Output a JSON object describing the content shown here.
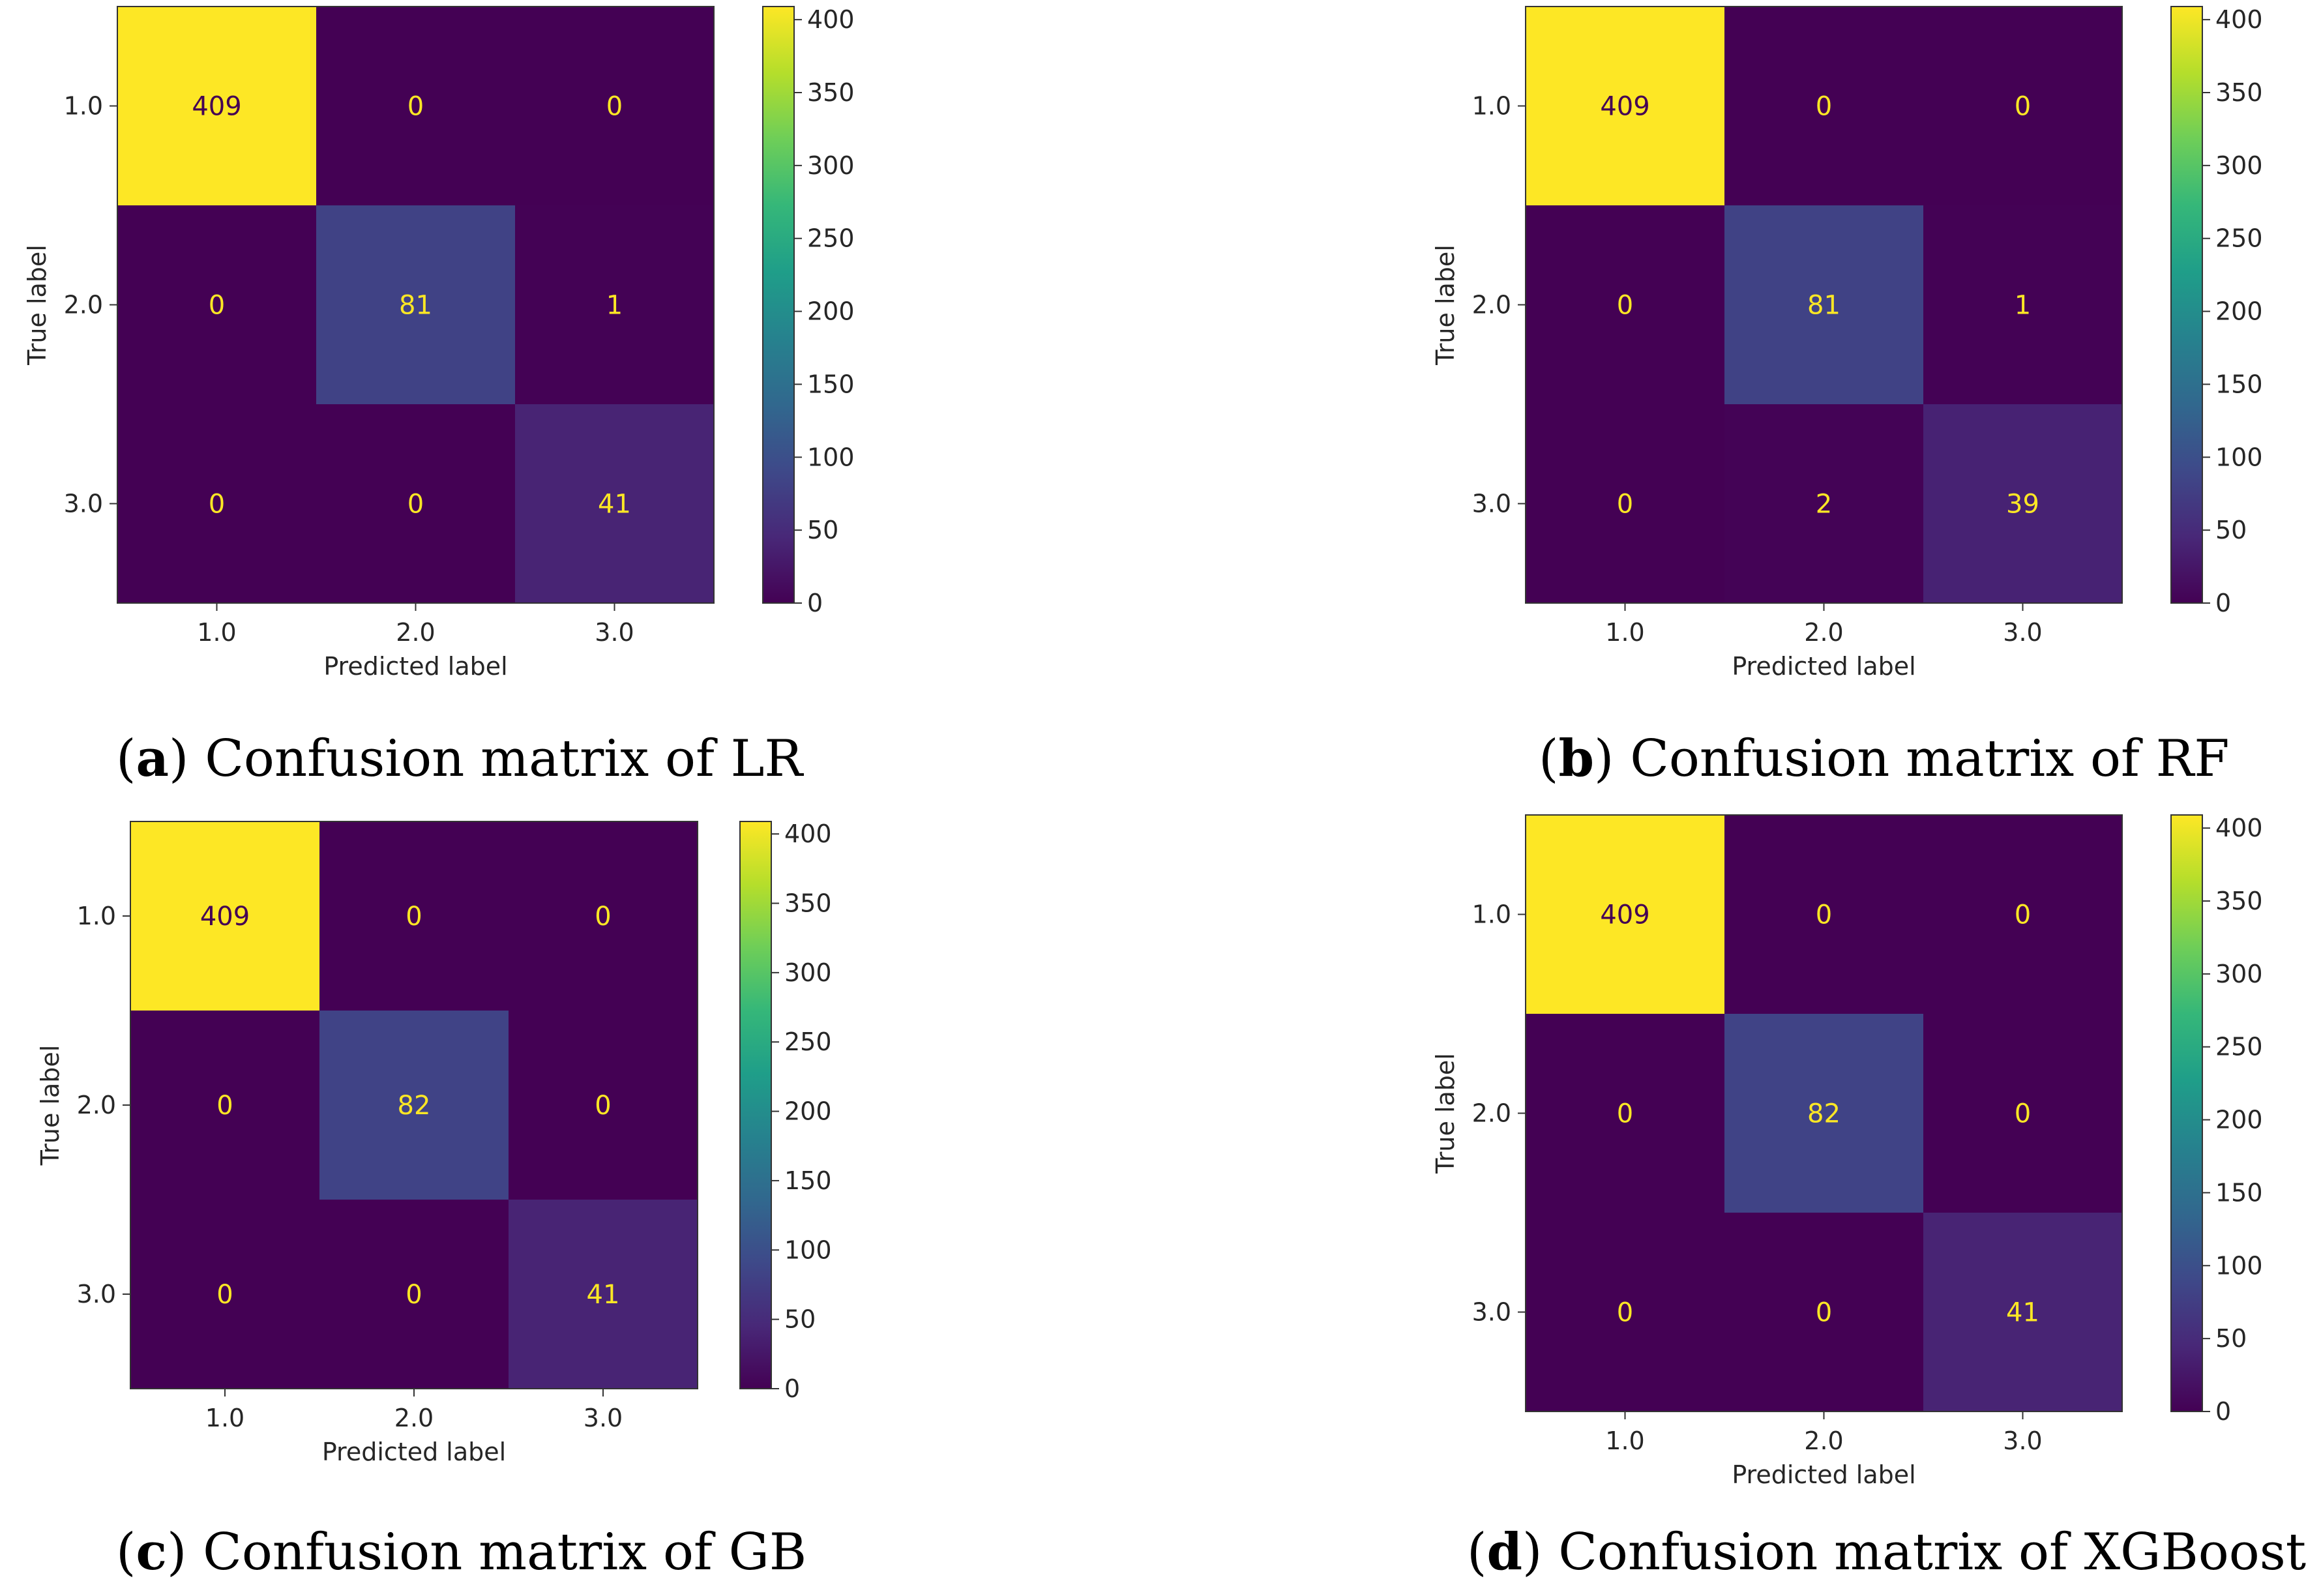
{
  "colormap": {
    "name": "viridis",
    "stops": [
      "#440154",
      "#482878",
      "#3e4989",
      "#31688e",
      "#26828e",
      "#1f9e89",
      "#35b779",
      "#6ece58",
      "#b5de2b",
      "#fde725"
    ]
  },
  "chart_data": [
    {
      "type": "heatmap",
      "title": "",
      "caption_letter": "a",
      "caption_text": "Confusion matrix of LR",
      "xlabel": "Predicted label",
      "ylabel": "True label",
      "x_categories": [
        "1.0",
        "2.0",
        "3.0"
      ],
      "y_categories": [
        "1.0",
        "2.0",
        "3.0"
      ],
      "matrix": [
        [
          409,
          0,
          0
        ],
        [
          0,
          81,
          1
        ],
        [
          0,
          0,
          41
        ]
      ],
      "colorbar": {
        "range": [
          0,
          409
        ],
        "ticks": [
          "0",
          "50",
          "100",
          "150",
          "200",
          "250",
          "300",
          "350",
          "400"
        ]
      }
    },
    {
      "type": "heatmap",
      "title": "",
      "caption_letter": "b",
      "caption_text": "Confusion matrix of RF",
      "xlabel": "Predicted label",
      "ylabel": "True label",
      "x_categories": [
        "1.0",
        "2.0",
        "3.0"
      ],
      "y_categories": [
        "1.0",
        "2.0",
        "3.0"
      ],
      "matrix": [
        [
          409,
          0,
          0
        ],
        [
          0,
          81,
          1
        ],
        [
          0,
          2,
          39
        ]
      ],
      "colorbar": {
        "range": [
          0,
          409
        ],
        "ticks": [
          "0",
          "50",
          "100",
          "150",
          "200",
          "250",
          "300",
          "350",
          "400"
        ]
      }
    },
    {
      "type": "heatmap",
      "title": "",
      "caption_letter": "c",
      "caption_text": "Confusion matrix of GB",
      "xlabel": "Predicted label",
      "ylabel": "True label",
      "x_categories": [
        "1.0",
        "2.0",
        "3.0"
      ],
      "y_categories": [
        "1.0",
        "2.0",
        "3.0"
      ],
      "matrix": [
        [
          409,
          0,
          0
        ],
        [
          0,
          82,
          0
        ],
        [
          0,
          0,
          41
        ]
      ],
      "colorbar": {
        "range": [
          0,
          409
        ],
        "ticks": [
          "0",
          "50",
          "100",
          "150",
          "200",
          "250",
          "300",
          "350",
          "400"
        ]
      }
    },
    {
      "type": "heatmap",
      "title": "",
      "caption_letter": "d",
      "caption_text": "Confusion matrix of XGBoost",
      "xlabel": "Predicted label",
      "ylabel": "True label",
      "x_categories": [
        "1.0",
        "2.0",
        "3.0"
      ],
      "y_categories": [
        "1.0",
        "2.0",
        "3.0"
      ],
      "matrix": [
        [
          409,
          0,
          0
        ],
        [
          0,
          82,
          0
        ],
        [
          0,
          0,
          41
        ]
      ],
      "colorbar": {
        "range": [
          0,
          409
        ],
        "ticks": [
          "0",
          "50",
          "100",
          "150",
          "200",
          "250",
          "300",
          "350",
          "400"
        ]
      }
    }
  ]
}
